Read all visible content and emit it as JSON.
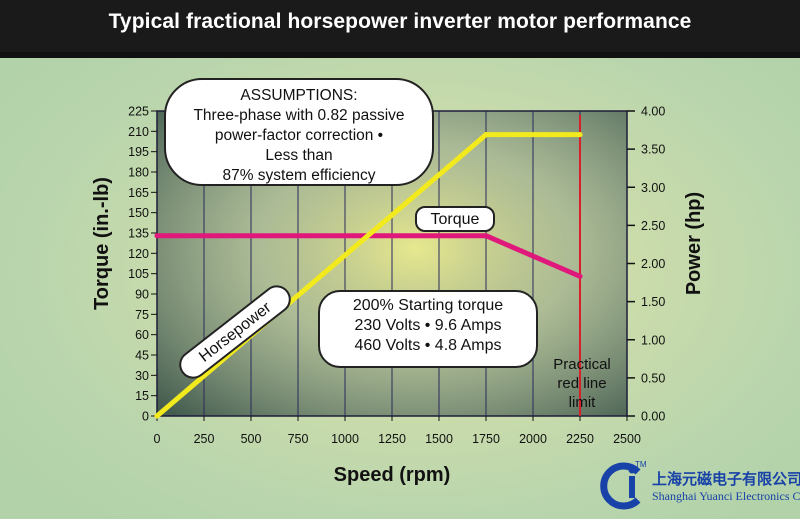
{
  "title": "Typical fractional horsepower inverter motor performance",
  "chart_data": {
    "type": "line",
    "xlabel": "Speed   (rpm)",
    "ylabel_left": "Torque (in.-lb)",
    "ylabel_right": "Power  (hp)",
    "xlim": [
      0,
      2500
    ],
    "ylim_left": [
      0,
      225
    ],
    "ylim_right": [
      0,
      4
    ],
    "x_ticks": [
      "0",
      "250",
      "500",
      "750",
      "1000",
      "1250",
      "1500",
      "1750",
      "2000",
      "2250",
      "2500"
    ],
    "y_left_ticks": [
      "0",
      "15",
      "30",
      "45",
      "60",
      "75",
      "90",
      "105",
      "120",
      "135",
      "150",
      "165",
      "180",
      "195",
      "210",
      "225"
    ],
    "y_right_ticks": [
      "0.00",
      "0.50",
      "1.00",
      "1.50",
      "2.00",
      "2.50",
      "3.00",
      "3.50",
      "4.00"
    ],
    "grid": true,
    "series": [
      {
        "name": "Torque",
        "axis": "left",
        "color": "#e0187c",
        "x": [
          0,
          1750,
          2250
        ],
        "y": [
          133,
          133,
          103
        ]
      },
      {
        "name": "Horsepower",
        "axis": "right",
        "color": "#f2ea1c",
        "x": [
          0,
          1750,
          2250
        ],
        "y": [
          0.0,
          3.69,
          3.69
        ]
      }
    ],
    "red_line": {
      "x": 2250,
      "color": "#d8202a",
      "label": [
        "Practical",
        "red line",
        "limit"
      ]
    },
    "annotations": {
      "assumptions": [
        "ASSUMPTIONS:",
        "Three-phase with 0.82 passive",
        "power-factor correction •",
        "Less than",
        "87% system efficiency"
      ],
      "starting": [
        "200% Starting torque",
        "230 Volts • 9.6 Amps",
        "460 Volts • 4.8 Amps"
      ]
    }
  },
  "company": {
    "logo_text": "CI",
    "tm": "TM",
    "name_cn": "上海元磁电子有限公司",
    "name_en": "Shanghai Yuanci Electronics Co.,Ltd."
  }
}
